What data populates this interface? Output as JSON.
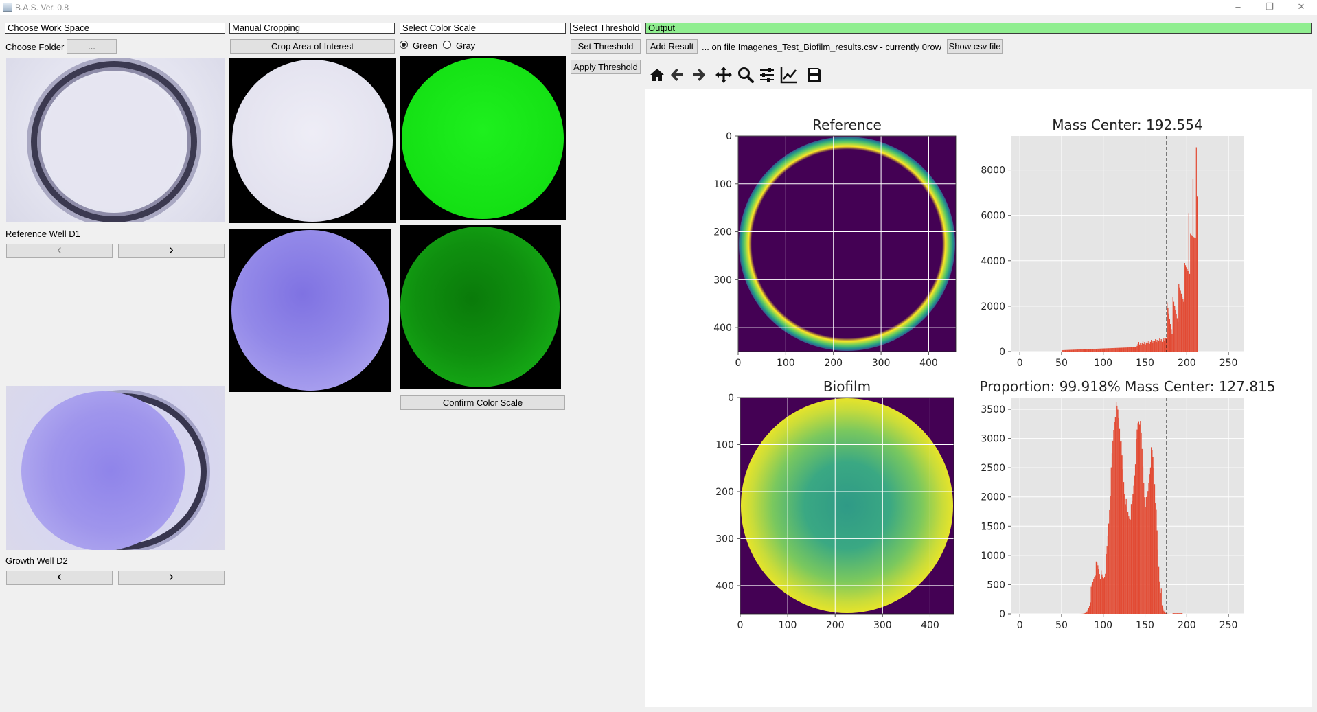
{
  "window": {
    "title": "B.A.S. Ver. 0.8",
    "controls": [
      "–",
      "❐",
      "✕"
    ]
  },
  "workspace": {
    "header": "Choose Work Space",
    "choose_folder_label": "Choose Folder",
    "choose_folder_button": "...",
    "reference_label": "Reference Well D1",
    "growth_label": "Growth Well D2",
    "prev_glyph": "‹",
    "next_glyph": "›"
  },
  "cropping": {
    "header": "Manual Cropping",
    "crop_button": "Crop Area of Interest"
  },
  "color_scale": {
    "header": "Select Color Scale",
    "options": [
      {
        "label": "Green",
        "selected": true
      },
      {
        "label": "Gray",
        "selected": false
      }
    ],
    "confirm_button": "Confirm Color Scale"
  },
  "threshold": {
    "header": "Select Threshold",
    "set_button": "Set Threshold",
    "apply_button": "Apply Threshold"
  },
  "output": {
    "header": "Output",
    "header_color": "#90ee90",
    "add_result_button": "Add Result",
    "status_text": "... on file Imagenes_Test_Biofilm_results.csv - currently 0row",
    "show_csv_button": "Show csv file"
  },
  "toolbar": [
    "home-icon",
    "back-arrow-icon",
    "forward-arrow-icon",
    "pan-icon",
    "zoom-icon",
    "configure-subplots-icon",
    "edit-axis-icon",
    "save-icon"
  ],
  "chart_data": [
    {
      "type": "heatmap",
      "title": "Reference",
      "x_ticks": [
        0,
        100,
        200,
        300,
        400
      ],
      "y_ticks": [
        0,
        100,
        200,
        300,
        400
      ],
      "xlim": [
        0,
        457
      ],
      "ylim": [
        0,
        450
      ],
      "grid": true
    },
    {
      "type": "bar",
      "title": "Mass Center: 192.554",
      "x_ticks": [
        0,
        50,
        100,
        150,
        200,
        250
      ],
      "y_ticks": [
        0,
        2000,
        4000,
        6000,
        8000
      ],
      "xlim": [
        -10,
        268
      ],
      "ylim": [
        0,
        9500
      ],
      "threshold_line": 176,
      "bar_color": "#e24a33",
      "grid": true
    },
    {
      "type": "heatmap",
      "title": "Biofilm",
      "x_ticks": [
        0,
        100,
        200,
        300,
        400
      ],
      "y_ticks": [
        0,
        100,
        200,
        300,
        400
      ],
      "xlim": [
        0,
        450
      ],
      "ylim": [
        0,
        460
      ],
      "grid": true
    },
    {
      "type": "bar",
      "title": "Proportion: 99.918%  Mass Center: 127.815",
      "x_ticks": [
        0,
        50,
        100,
        150,
        200,
        250
      ],
      "y_ticks": [
        0,
        500,
        1000,
        1500,
        2000,
        2500,
        3000,
        3500
      ],
      "xlim": [
        -10,
        268
      ],
      "ylim": [
        0,
        3700
      ],
      "threshold_line": 176,
      "bar_color": "#e24a33",
      "grid": true
    }
  ]
}
